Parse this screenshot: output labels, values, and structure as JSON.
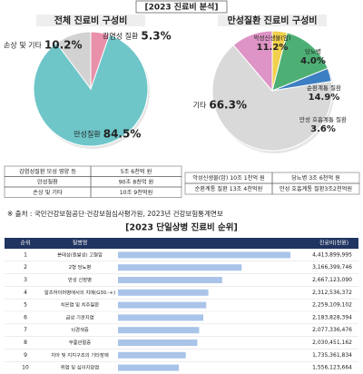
{
  "title": "[2023 진료비 분석]",
  "chart_data": [
    {
      "type": "pie",
      "title": "전체 진료비 구성비",
      "categories": [
        "감염성 질환",
        "만성질환",
        "손상 및 기타"
      ],
      "values": [
        5.3,
        84.5,
        10.2
      ],
      "value_labels": [
        "5.3%",
        "84.5%",
        "10.2%"
      ],
      "colors": [
        "#e990aa",
        "#6ec6c9",
        "#d2d2d2"
      ]
    },
    {
      "type": "pie",
      "title": "만성질환 진료비 구성비",
      "categories": [
        "당뇨병",
        "순환계통 질환",
        "만성 호흡계통 질환",
        "기타",
        "악성신생물(암)"
      ],
      "values": [
        4.0,
        14.9,
        3.6,
        66.3,
        11.2
      ],
      "value_labels": [
        "4.0%",
        "14.9%",
        "3.6%",
        "66.3%",
        "11.2%"
      ],
      "colors": [
        "#f1d04c",
        "#4daf74",
        "#3d7fc3",
        "#d9d9d9",
        "#de94c6"
      ]
    },
    {
      "type": "hbar",
      "title": "[2023 단일상병 진료비 순위]",
      "columns": [
        "순위",
        "질병명",
        "진료비(천원)"
      ],
      "ranks": [
        1,
        2,
        3,
        4,
        5,
        6,
        7,
        8,
        9,
        10
      ],
      "categories": [
        "본태성(원발성) 고혈압",
        "2형 당뇨병",
        "만성 신장병",
        "알츠하이머병에서의 치매(G30.-+)",
        "치은염 및 치주질환",
        "급성 기관지염",
        "뇌경색증",
        "무릎관절증",
        "치아 및 지지구조의 기타장애",
        "위염 및 십이지장염"
      ],
      "values": [
        4413899995,
        3166399746,
        2667123090,
        2312536372,
        2259109102,
        2183828394,
        2077336476,
        2030451162,
        1735361834,
        1556123664
      ],
      "value_labels": [
        "4,413,899,995",
        "3,166,399,746",
        "2,667,123,090",
        "2,312,536,372",
        "2,259,109,102",
        "2,183,828,394",
        "2,077,336,476",
        "2,030,451,162",
        "1,735,361,834",
        "1,556,123,664"
      ],
      "color": "#a9c4e8"
    }
  ],
  "tables": [
    {
      "rows": [
        [
          "감염성질환 모성 영양 등",
          "5조 6천억 원"
        ],
        [
          "만성질환",
          "90조 8천억 원"
        ],
        [
          "손상 및 기타",
          "10조 9천억원"
        ]
      ]
    },
    {
      "rows": [
        [
          "악성신생물(암) 10조 1천억 원",
          "당뇨병 3조 6천억 원"
        ],
        [
          "순환계통 질환 13조 4천억원",
          "만성 호흡계통 질환3조2천억원"
        ]
      ]
    }
  ],
  "source": "※ 출처 : 국민건강보험공단·건강보험심사평가원, 2023년 건강보험통계연보"
}
